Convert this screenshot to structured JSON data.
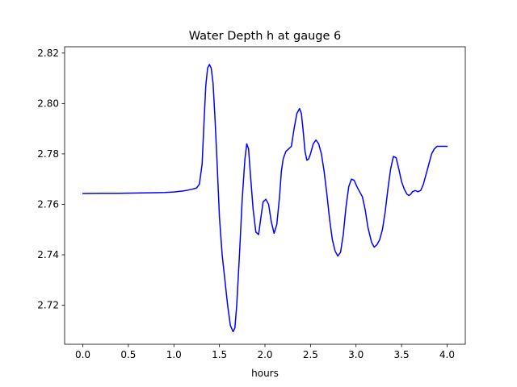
{
  "chart_data": {
    "type": "line",
    "title": "Water Depth h at gauge 6",
    "xlabel": "hours",
    "ylabel": "",
    "xlim": [
      -0.2,
      4.2
    ],
    "ylim": [
      2.7045,
      2.8225
    ],
    "grid": false,
    "line_color": "#0000ff",
    "xticks": [
      0.0,
      0.5,
      1.0,
      1.5,
      2.0,
      2.5,
      3.0,
      3.5,
      4.0
    ],
    "xtick_labels": [
      "0.0",
      "0.5",
      "1.0",
      "1.5",
      "2.0",
      "2.5",
      "3.0",
      "3.5",
      "4.0"
    ],
    "yticks": [
      2.72,
      2.74,
      2.76,
      2.78,
      2.8,
      2.82
    ],
    "ytick_labels": [
      "2.72",
      "2.74",
      "2.76",
      "2.78",
      "2.80",
      "2.82"
    ],
    "series": [
      {
        "x": [
          0.0,
          0.2,
          0.4,
          0.6,
          0.8,
          0.9,
          1.0,
          1.1,
          1.15,
          1.2,
          1.25,
          1.28,
          1.31,
          1.33,
          1.35,
          1.37,
          1.39,
          1.41,
          1.43,
          1.45,
          1.47,
          1.5,
          1.53,
          1.56,
          1.59,
          1.62,
          1.65,
          1.67,
          1.69,
          1.72,
          1.75,
          1.78,
          1.8,
          1.82,
          1.84,
          1.87,
          1.9,
          1.93,
          1.96,
          1.98,
          2.01,
          2.04,
          2.07,
          2.1,
          2.13,
          2.16,
          2.18,
          2.2,
          2.23,
          2.26,
          2.29,
          2.32,
          2.35,
          2.38,
          2.4,
          2.42,
          2.44,
          2.46,
          2.48,
          2.5,
          2.53,
          2.56,
          2.59,
          2.62,
          2.65,
          2.68,
          2.71,
          2.74,
          2.77,
          2.8,
          2.83,
          2.86,
          2.89,
          2.92,
          2.95,
          2.98,
          3.01,
          3.04,
          3.07,
          3.1,
          3.13,
          3.17,
          3.2,
          3.23,
          3.26,
          3.29,
          3.32,
          3.35,
          3.38,
          3.41,
          3.44,
          3.47,
          3.5,
          3.53,
          3.56,
          3.58,
          3.6,
          3.62,
          3.65,
          3.68,
          3.71,
          3.74,
          3.77,
          3.8,
          3.83,
          3.86,
          3.89,
          3.92,
          3.95,
          3.98,
          4.0
        ],
        "y": [
          2.7643,
          2.7644,
          2.7644,
          2.7645,
          2.7646,
          2.7647,
          2.7649,
          2.7653,
          2.7656,
          2.766,
          2.7665,
          2.768,
          2.776,
          2.792,
          2.807,
          2.814,
          2.8155,
          2.814,
          2.808,
          2.795,
          2.78,
          2.755,
          2.74,
          2.73,
          2.72,
          2.712,
          2.7095,
          2.711,
          2.72,
          2.74,
          2.762,
          2.778,
          2.784,
          2.782,
          2.772,
          2.758,
          2.749,
          2.748,
          2.756,
          2.761,
          2.762,
          2.76,
          2.753,
          2.7485,
          2.752,
          2.763,
          2.773,
          2.778,
          2.781,
          2.782,
          2.783,
          2.79,
          2.796,
          2.798,
          2.796,
          2.789,
          2.781,
          2.7775,
          2.778,
          2.78,
          2.784,
          2.7855,
          2.784,
          2.78,
          2.773,
          2.764,
          2.754,
          2.746,
          2.7415,
          2.7395,
          2.741,
          2.748,
          2.759,
          2.767,
          2.77,
          2.7695,
          2.767,
          2.765,
          2.763,
          2.758,
          2.751,
          2.745,
          2.743,
          2.744,
          2.746,
          2.75,
          2.757,
          2.766,
          2.774,
          2.779,
          2.7785,
          2.774,
          2.769,
          2.766,
          2.764,
          2.7635,
          2.764,
          2.765,
          2.7655,
          2.765,
          2.7655,
          2.768,
          2.772,
          2.776,
          2.78,
          2.782,
          2.783,
          2.783,
          2.783,
          2.783,
          2.783
        ]
      }
    ]
  }
}
